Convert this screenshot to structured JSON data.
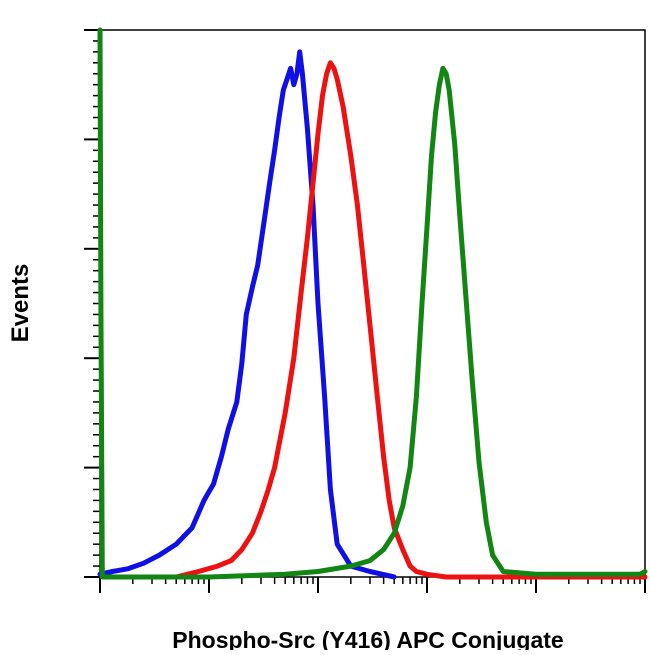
{
  "chart_data": {
    "type": "line",
    "title": "",
    "xlabel": "Phospho-Src (Y416) APC Conjugate",
    "ylabel": "Events",
    "x_scale": "log",
    "xlim": [
      1,
      100000
    ],
    "ylim": [
      0,
      100
    ],
    "grid": false,
    "legend": "none",
    "tick_labels_shown": false,
    "series": [
      {
        "color": "#1010e6",
        "x": [
          1,
          1.3,
          1.8,
          2.5,
          3.5,
          5,
          7,
          9,
          11,
          13,
          15,
          18,
          20,
          22,
          25,
          28,
          32,
          36,
          40,
          44,
          48,
          52,
          56,
          60,
          64,
          68,
          72,
          80,
          90,
          100,
          115,
          130,
          150,
          200,
          300,
          500
        ],
        "y": [
          0.5,
          1,
          1.5,
          2.5,
          4,
          6,
          9,
          14,
          17,
          22,
          27,
          32,
          39,
          48,
          53,
          57,
          65,
          72,
          78,
          84,
          89,
          91,
          93,
          90,
          92,
          96,
          92,
          82,
          68,
          50,
          33,
          16,
          6,
          2,
          1,
          0
        ]
      },
      {
        "color": "#ee1111",
        "x": [
          5,
          8,
          12,
          16,
          20,
          25,
          30,
          35,
          40,
          50,
          60,
          70,
          80,
          90,
          100,
          110,
          120,
          130,
          140,
          150,
          170,
          200,
          230,
          260,
          300,
          350,
          400,
          450,
          500,
          600,
          700,
          800,
          1000,
          1500,
          5000,
          100000
        ],
        "y": [
          0,
          1,
          2,
          3,
          5,
          8,
          12,
          16,
          20,
          30,
          40,
          52,
          62,
          72,
          81,
          88,
          92,
          94,
          93,
          91,
          86,
          77,
          68,
          58,
          46,
          33,
          22,
          14,
          9,
          5,
          2,
          1,
          0.5,
          0,
          0,
          0
        ]
      },
      {
        "color": "#128612",
        "x": [
          1,
          1.02,
          1.05,
          10,
          50,
          100,
          200,
          300,
          400,
          500,
          600,
          700,
          800,
          900,
          1000,
          1100,
          1200,
          1300,
          1400,
          1500,
          1600,
          1800,
          2000,
          2300,
          2600,
          3000,
          3500,
          4000,
          5000,
          10000,
          50000,
          90000,
          100000
        ],
        "y": [
          100,
          50,
          0,
          0,
          0.5,
          1,
          2,
          3,
          5,
          8,
          13,
          20,
          33,
          50,
          64,
          77,
          85,
          90,
          93,
          92,
          89,
          79,
          66,
          50,
          36,
          21,
          10,
          4,
          1,
          0.5,
          0.5,
          0.5,
          1
        ]
      }
    ]
  }
}
